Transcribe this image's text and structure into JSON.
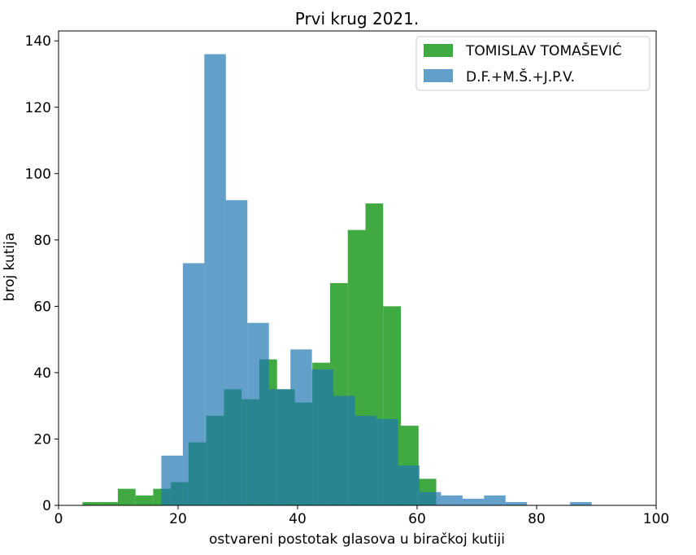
{
  "chart_data": {
    "type": "bar",
    "title": "Prvi krug 2021.",
    "xlabel": "ostvareni postotak glasova u biračkoj kutiji",
    "ylabel": "broj kutija",
    "xlim": [
      0,
      100
    ],
    "ylim": [
      0,
      143
    ],
    "x_ticks": [
      "0",
      "20",
      "40",
      "60",
      "80",
      "100"
    ],
    "y_ticks": [
      "0",
      "20",
      "40",
      "60",
      "80",
      "100",
      "120",
      "140"
    ],
    "legend_position": "top-right",
    "grid": false,
    "series": [
      {
        "name": "TOMISLAV TOMAŠEVIĆ",
        "color": "#2ca02c",
        "opacity": 0.9,
        "bin_edges": [
          4.0,
          6.96,
          9.92,
          12.88,
          15.84,
          18.8,
          21.76,
          24.72,
          27.68,
          30.64,
          33.6,
          36.56,
          39.52,
          42.48,
          45.44,
          48.4,
          51.36,
          54.32,
          57.28,
          60.24,
          63.2
        ],
        "counts": [
          1,
          1,
          5,
          3,
          5,
          7,
          19,
          27,
          35,
          32,
          44,
          35,
          31,
          43,
          67,
          83,
          91,
          60,
          24,
          8
        ]
      },
      {
        "name": "D.F.+M.Š.+J.P.V.",
        "color": "#1f77b4",
        "opacity": 0.7,
        "bin_edges": [
          17.2,
          20.8,
          24.4,
          28.0,
          31.6,
          35.2,
          38.8,
          42.4,
          46.0,
          49.6,
          53.2,
          56.8,
          60.4,
          64.0,
          67.6,
          71.2,
          74.8,
          78.4,
          82.0,
          85.6,
          89.2
        ],
        "counts": [
          15,
          73,
          136,
          92,
          55,
          35,
          47,
          41,
          33,
          27,
          26,
          12,
          4,
          3,
          2,
          3,
          1,
          0,
          0,
          1
        ]
      }
    ]
  }
}
